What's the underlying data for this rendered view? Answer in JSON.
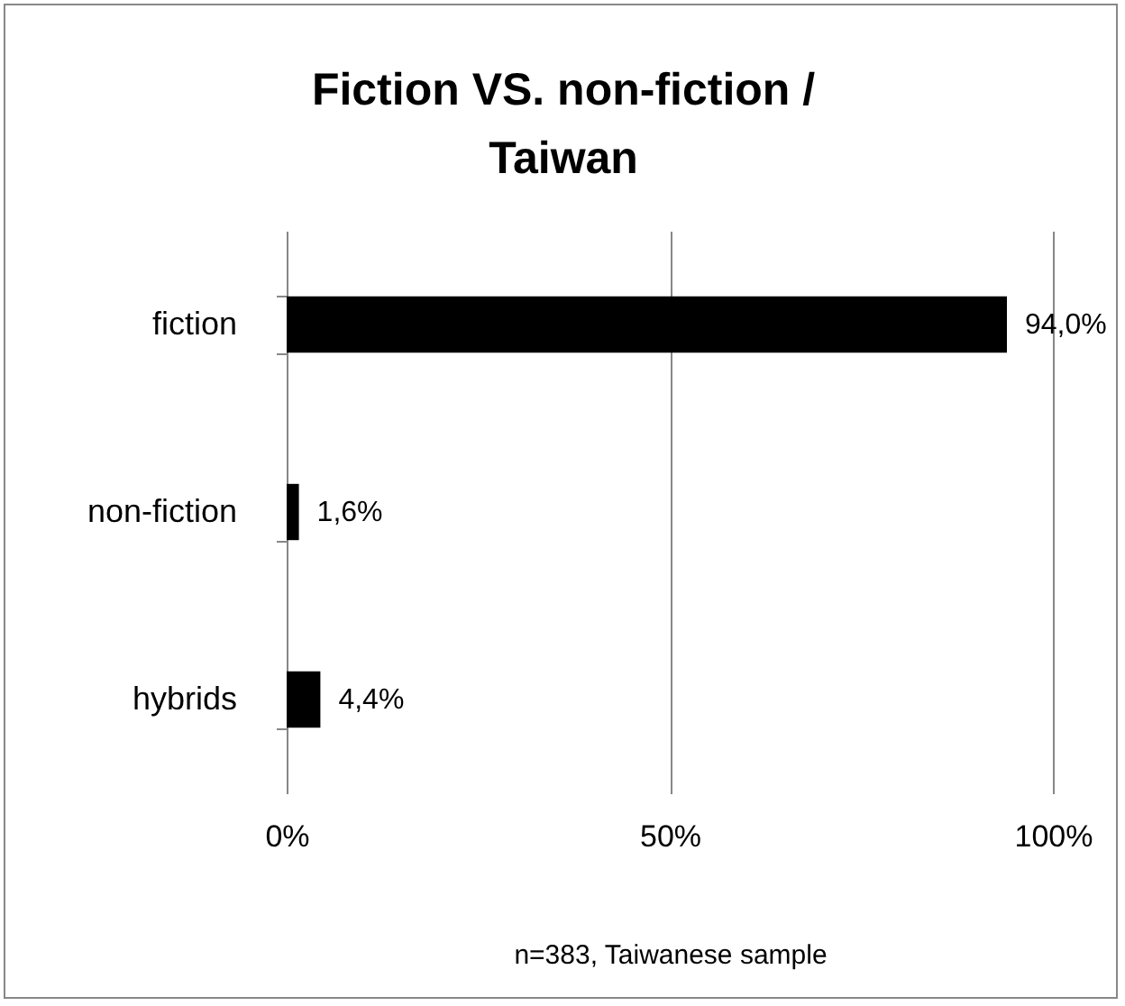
{
  "chart_data": {
    "type": "bar",
    "orientation": "horizontal",
    "title": "Fiction VS. non-fiction / Taiwan",
    "categories": [
      "fiction",
      "non-fiction",
      "hybrids"
    ],
    "values": [
      94.0,
      1.6,
      4.4
    ],
    "value_labels": [
      "94,0%",
      "1,6%",
      "4,4%"
    ],
    "color": "#000000",
    "xlim": [
      0,
      100
    ],
    "xticks": [
      {
        "value": 0,
        "label": "0%"
      },
      {
        "value": 50,
        "label": "50%"
      },
      {
        "value": 100,
        "label": "100%"
      }
    ],
    "grid": "x",
    "annotations": [
      "n=383, Taiwanese sample"
    ]
  }
}
